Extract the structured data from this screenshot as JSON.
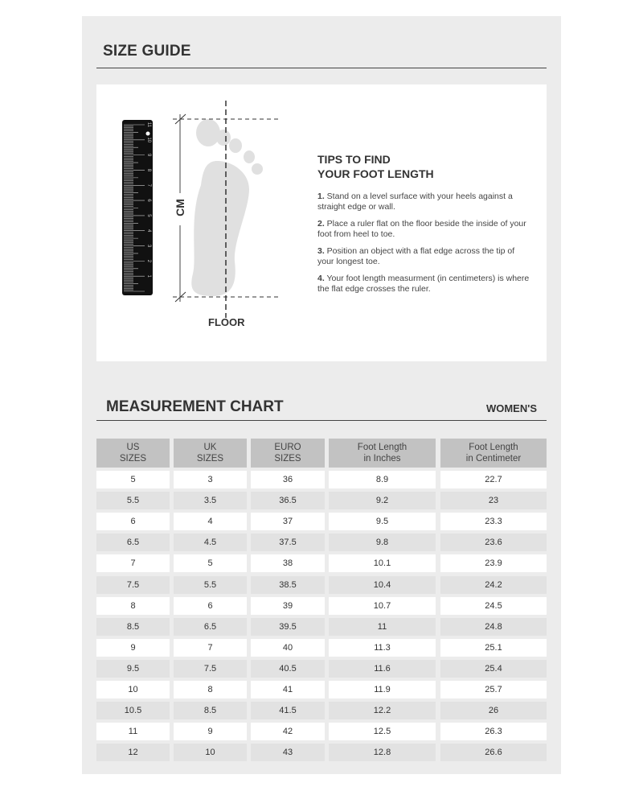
{
  "size_guide": {
    "title": "SIZE GUIDE"
  },
  "diagram": {
    "cm_label": "CM",
    "floor_label": "FLOOR",
    "ruler_labels": [
      "1",
      "2",
      "3",
      "4",
      "5",
      "6",
      "7",
      "8",
      "9",
      "10",
      "11"
    ],
    "foot_color": "#e0e0e0",
    "ruler_color": "#111111"
  },
  "tips": {
    "title_line1": "TIPS TO FIND",
    "title_line2": "YOUR FOOT LENGTH",
    "items": [
      {
        "num": "1.",
        "text": " Stand on a level surface with your heels against a straight edge or wall."
      },
      {
        "num": "2.",
        "text": " Place a ruler flat on the floor beside the inside of your foot from heel to toe."
      },
      {
        "num": "3.",
        "text": " Position an object with a flat edge across the tip of your longest toe."
      },
      {
        "num": "4.",
        "text": " Your foot length measurment (in centimeters) is where the flat edge crosses the ruler."
      }
    ]
  },
  "chart": {
    "title": "MEASUREMENT CHART",
    "category": "WOMEN'S",
    "headers": [
      [
        "US",
        "SIZES"
      ],
      [
        "UK",
        "SIZES"
      ],
      [
        "EURO",
        "SIZES"
      ],
      [
        "Foot Length",
        "in Inches"
      ],
      [
        "Foot Length",
        "in Centimeter"
      ]
    ],
    "rows": [
      [
        "5",
        "3",
        "36",
        "8.9",
        "22.7"
      ],
      [
        "5.5",
        "3.5",
        "36.5",
        "9.2",
        "23"
      ],
      [
        "6",
        "4",
        "37",
        "9.5",
        "23.3"
      ],
      [
        "6.5",
        "4.5",
        "37.5",
        "9.8",
        "23.6"
      ],
      [
        "7",
        "5",
        "38",
        "10.1",
        "23.9"
      ],
      [
        "7.5",
        "5.5",
        "38.5",
        "10.4",
        "24.2"
      ],
      [
        "8",
        "6",
        "39",
        "10.7",
        "24.5"
      ],
      [
        "8.5",
        "6.5",
        "39.5",
        "11",
        "24.8"
      ],
      [
        "9",
        "7",
        "40",
        "11.3",
        "25.1"
      ],
      [
        "9.5",
        "7.5",
        "40.5",
        "11.6",
        "25.4"
      ],
      [
        "10",
        "8",
        "41",
        "11.9",
        "25.7"
      ],
      [
        "10.5",
        "8.5",
        "41.5",
        "12.2",
        "26"
      ],
      [
        "11",
        "9",
        "42",
        "12.5",
        "26.3"
      ],
      [
        "12",
        "10",
        "43",
        "12.8",
        "26.6"
      ]
    ]
  }
}
